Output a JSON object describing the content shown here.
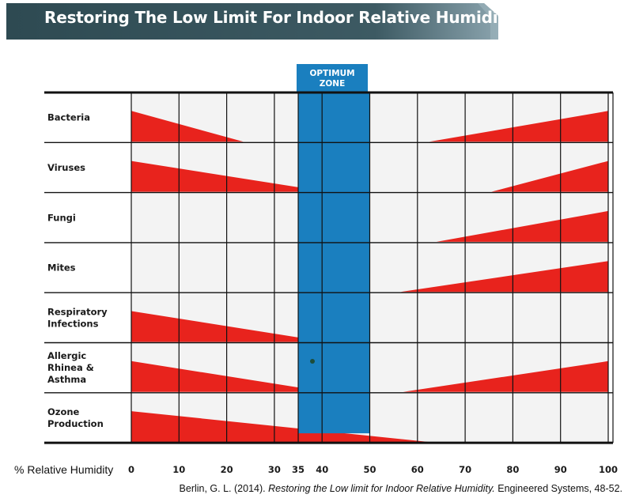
{
  "chart_data": {
    "type": "range-chart",
    "title": "Restoring The Low Limit For Indoor Relative Humidity",
    "xlabel": "% Relative Humidity",
    "xlim": [
      0,
      100
    ],
    "x_ticks": [
      0,
      10,
      20,
      30,
      35,
      40,
      50,
      60,
      70,
      80,
      90,
      100
    ],
    "optimum_zone": {
      "label_line1": "OPTIMUM",
      "label_line2": "ZONE",
      "range": [
        35,
        50
      ],
      "color": "#1a7fbf"
    },
    "bar_color": "#e8231d",
    "rows": [
      {
        "label_lines": [
          "Bacteria"
        ],
        "low_end": 23.5,
        "high_start": 62.5
      },
      {
        "label_lines": [
          "Viruses"
        ],
        "low_end": 41,
        "high_start": 75.5
      },
      {
        "label_lines": [
          "Fungi"
        ],
        "low_end": null,
        "high_start": 64
      },
      {
        "label_lines": [
          "Mites"
        ],
        "low_end": null,
        "high_start": 56.5
      },
      {
        "label_lines": [
          "Respiratory",
          "Infections"
        ],
        "low_end": 41,
        "high_start": null
      },
      {
        "label_lines": [
          "Allergic",
          "Rhinea &",
          "Asthma"
        ],
        "low_end": 41,
        "high_start": 57
      },
      {
        "label_lines": [
          "Ozone",
          "Production"
        ],
        "low_end": 62.5,
        "high_start": null
      }
    ]
  },
  "citation": {
    "authors": "Berlin, G. L.  (2014). ",
    "title_italic": "Restoring the Low limit for Indoor Relative Humidity.",
    "source": " Engineered Systems, 48-52."
  },
  "colors": {
    "banner_dark": "#2e4a52",
    "banner_light": "#8aa3ad",
    "grid": "#111111",
    "cell_bg": "#f3f3f3"
  }
}
